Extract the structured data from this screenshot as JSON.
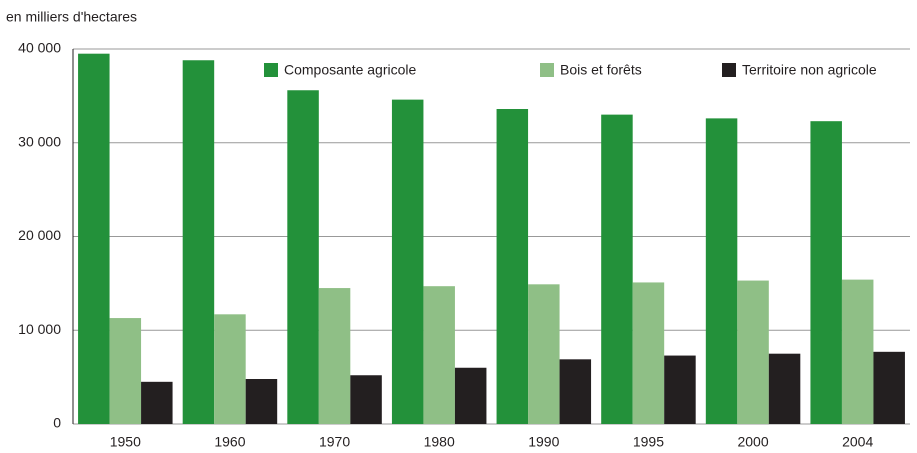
{
  "chart_data": {
    "type": "bar",
    "ylabel": "en milliers d'hectares",
    "categories": [
      "1950",
      "1960",
      "1970",
      "1980",
      "1990",
      "1995",
      "2000",
      "2004"
    ],
    "series": [
      {
        "name": "Composante agricole",
        "color": "#23913a",
        "values": [
          39500,
          38800,
          35600,
          34600,
          33600,
          33000,
          32600,
          32300
        ]
      },
      {
        "name": "Bois et forêts",
        "color": "#8fbf86",
        "values": [
          11300,
          11700,
          14500,
          14700,
          14900,
          15100,
          15300,
          15400
        ]
      },
      {
        "name": "Territoire non agricole",
        "color": "#231f20",
        "values": [
          4500,
          4800,
          5200,
          6000,
          6900,
          7300,
          7500,
          7700
        ]
      }
    ],
    "ylim": [
      0,
      40000
    ],
    "yticks": [
      0,
      {
        "value": 10000,
        "label": "10 000"
      },
      {
        "value": 20000,
        "label": "20 000"
      },
      {
        "value": 30000,
        "label": "30 000"
      },
      {
        "value": 40000,
        "label": "40 000"
      }
    ],
    "grid": true
  }
}
